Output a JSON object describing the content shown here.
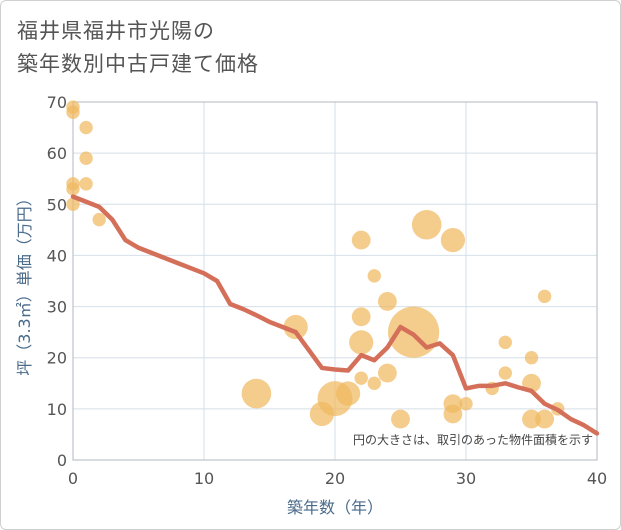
{
  "chart_data": {
    "type": "scatter+line",
    "title_lines": [
      "福井県福井市光陽の",
      "築年数別中古戸建て価格"
    ],
    "xlabel": "築年数（年）",
    "ylabel": "坪（3.3㎡）単価（万円）",
    "xlim": [
      0,
      40
    ],
    "ylim": [
      0,
      70
    ],
    "x_ticks": [
      0,
      10,
      20,
      30,
      40
    ],
    "y_ticks": [
      0,
      10,
      20,
      30,
      40,
      50,
      60,
      70
    ],
    "grid": true,
    "note": "円の大きさは、取引のあった物件面積を示す",
    "colors": {
      "bubble": "#f0b860",
      "line": "#d4705a",
      "grid": "#d6dfe8",
      "axis": "#b0b8c0"
    },
    "bubbles": [
      {
        "x": 0,
        "y": 69,
        "s": 1
      },
      {
        "x": 0,
        "y": 68,
        "s": 1
      },
      {
        "x": 0,
        "y": 54,
        "s": 1
      },
      {
        "x": 0,
        "y": 53,
        "s": 1
      },
      {
        "x": 0,
        "y": 50,
        "s": 1
      },
      {
        "x": 1,
        "y": 65,
        "s": 1
      },
      {
        "x": 1,
        "y": 59,
        "s": 1
      },
      {
        "x": 1,
        "y": 54,
        "s": 1
      },
      {
        "x": 2,
        "y": 47,
        "s": 1
      },
      {
        "x": 14,
        "y": 13,
        "s": 4
      },
      {
        "x": 17,
        "y": 26,
        "s": 3
      },
      {
        "x": 19,
        "y": 9,
        "s": 3
      },
      {
        "x": 20,
        "y": 12,
        "s": 5
      },
      {
        "x": 21,
        "y": 13,
        "s": 3
      },
      {
        "x": 22,
        "y": 43,
        "s": 2
      },
      {
        "x": 22,
        "y": 28,
        "s": 2
      },
      {
        "x": 22,
        "y": 23,
        "s": 3
      },
      {
        "x": 22,
        "y": 16,
        "s": 1
      },
      {
        "x": 23,
        "y": 36,
        "s": 1
      },
      {
        "x": 23,
        "y": 15,
        "s": 1
      },
      {
        "x": 24,
        "y": 31,
        "s": 2
      },
      {
        "x": 24,
        "y": 17,
        "s": 2
      },
      {
        "x": 25,
        "y": 8,
        "s": 2
      },
      {
        "x": 26,
        "y": 25,
        "s": 8
      },
      {
        "x": 27,
        "y": 46,
        "s": 4
      },
      {
        "x": 29,
        "y": 43,
        "s": 3
      },
      {
        "x": 29,
        "y": 11,
        "s": 2
      },
      {
        "x": 29,
        "y": 9,
        "s": 2
      },
      {
        "x": 30,
        "y": 11,
        "s": 1
      },
      {
        "x": 32,
        "y": 14,
        "s": 1
      },
      {
        "x": 33,
        "y": 23,
        "s": 1
      },
      {
        "x": 33,
        "y": 17,
        "s": 1
      },
      {
        "x": 35,
        "y": 20,
        "s": 1
      },
      {
        "x": 35,
        "y": 15,
        "s": 2
      },
      {
        "x": 35,
        "y": 8,
        "s": 2
      },
      {
        "x": 36,
        "y": 32,
        "s": 1
      },
      {
        "x": 36,
        "y": 8,
        "s": 2
      },
      {
        "x": 37,
        "y": 10,
        "s": 1
      }
    ],
    "trend": {
      "x": [
        0,
        1,
        2,
        3,
        4,
        5,
        6,
        7,
        8,
        9,
        10,
        11,
        12,
        13,
        14,
        15,
        16,
        17,
        18,
        19,
        20,
        21,
        22,
        23,
        24,
        25,
        26,
        27,
        28,
        29,
        30,
        31,
        32,
        33,
        34,
        35,
        36,
        37,
        38,
        39,
        40
      ],
      "y": [
        51.5,
        50.5,
        49.5,
        47,
        43,
        41.5,
        40.5,
        39.5,
        38.5,
        37.5,
        36.5,
        35,
        30.5,
        29.5,
        28.3,
        27,
        26,
        25,
        21.5,
        18,
        17.7,
        17.5,
        20.5,
        19.5,
        22,
        26,
        24.5,
        22,
        22.8,
        20.5,
        14,
        14.5,
        14.5,
        15,
        14.2,
        13.5,
        11,
        9.8,
        8,
        6.8,
        5.2
      ]
    }
  }
}
